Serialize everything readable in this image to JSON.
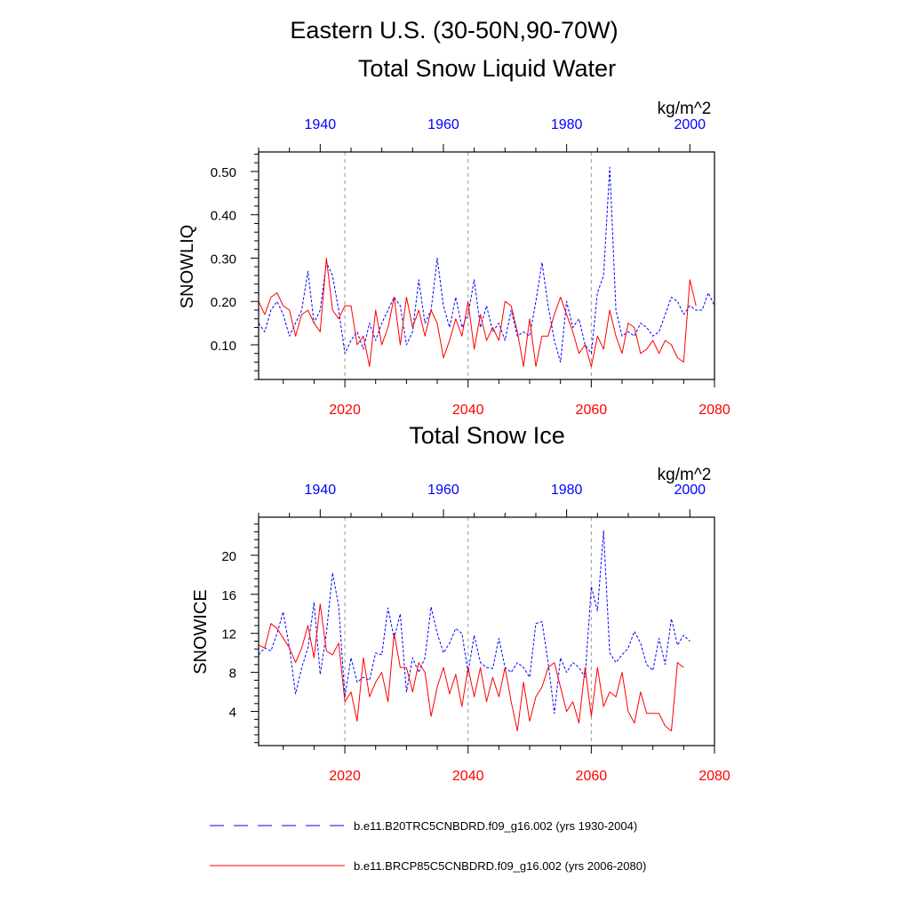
{
  "figure": {
    "title_line1": "Eastern U.S. (30-50N,90-70W)",
    "legend": [
      {
        "label": "b.e11.B20TRC5CNBDRD.f09_g16.002 (yrs 1930-2004)",
        "color": "#0000ff",
        "style": "dashed"
      },
      {
        "label": "b.e11.BRCP85C5CNBDRD.f09_g16.002 (yrs 2006-2080)",
        "color": "#ff0000",
        "style": "solid"
      }
    ]
  },
  "colors": {
    "historical": "#0000ff",
    "future": "#ff0000",
    "axis": "#000000",
    "grid": "#999999"
  },
  "chart_data": [
    {
      "type": "line",
      "title": "Total Snow Liquid Water",
      "units": "kg/m^2",
      "ylabel": "SNOWLIQ",
      "ylim": [
        0.02,
        0.545
      ],
      "yticks": [
        0.1,
        0.2,
        0.3,
        0.4,
        0.5
      ],
      "ytick_labels": [
        "0.10",
        "0.20",
        "0.30",
        "0.40",
        "0.50"
      ],
      "x_bottom": {
        "range": [
          2006,
          2080
        ],
        "ticks": [
          2020,
          2040,
          2060,
          2080
        ],
        "color": "#ff0000"
      },
      "x_top": {
        "range": [
          1930,
          2004
        ],
        "ticks": [
          1940,
          1960,
          1980,
          2000
        ],
        "color": "#0000ff"
      },
      "gridlines_at_bottom_years": [
        2020,
        2040,
        2060
      ],
      "series": [
        {
          "name": "b.e11.B20TRC5CNBDRD.f09_g16.002 (yrs 1930-2004)",
          "axis": "top",
          "start_year": 1930,
          "style": "dashed",
          "color": "#0000ff",
          "values": [
            0.15,
            0.13,
            0.18,
            0.2,
            0.17,
            0.12,
            0.15,
            0.18,
            0.27,
            0.15,
            0.18,
            0.29,
            0.26,
            0.18,
            0.08,
            0.11,
            0.13,
            0.09,
            0.15,
            0.11,
            0.15,
            0.18,
            0.21,
            0.19,
            0.1,
            0.13,
            0.25,
            0.15,
            0.18,
            0.3,
            0.19,
            0.14,
            0.21,
            0.14,
            0.17,
            0.25,
            0.14,
            0.19,
            0.13,
            0.15,
            0.11,
            0.18,
            0.12,
            0.13,
            0.12,
            0.2,
            0.29,
            0.19,
            0.11,
            0.06,
            0.2,
            0.14,
            0.16,
            0.1,
            0.08,
            0.22,
            0.26,
            0.51,
            0.18,
            0.12,
            0.13,
            0.12,
            0.15,
            0.14,
            0.12,
            0.13,
            0.17,
            0.21,
            0.2,
            0.17,
            0.19,
            0.18,
            0.18,
            0.22,
            0.19
          ]
        },
        {
          "name": "b.e11.BRCP85C5CNBDRD.f09_g16.002 (yrs 2006-2080)",
          "axis": "bottom",
          "start_year": 2006,
          "style": "solid",
          "color": "#ff0000",
          "values": [
            0.2,
            0.17,
            0.21,
            0.22,
            0.19,
            0.18,
            0.12,
            0.17,
            0.18,
            0.15,
            0.13,
            0.3,
            0.18,
            0.16,
            0.19,
            0.19,
            0.1,
            0.12,
            0.05,
            0.18,
            0.1,
            0.14,
            0.21,
            0.1,
            0.21,
            0.14,
            0.18,
            0.12,
            0.18,
            0.15,
            0.07,
            0.11,
            0.16,
            0.12,
            0.2,
            0.09,
            0.17,
            0.11,
            0.14,
            0.11,
            0.2,
            0.19,
            0.13,
            0.05,
            0.16,
            0.05,
            0.12,
            0.12,
            0.17,
            0.21,
            0.17,
            0.13,
            0.08,
            0.1,
            0.05,
            0.12,
            0.09,
            0.18,
            0.12,
            0.08,
            0.15,
            0.14,
            0.08,
            0.09,
            0.11,
            0.08,
            0.11,
            0.1,
            0.07,
            0.06,
            0.25,
            0.19
          ]
        }
      ]
    },
    {
      "type": "line",
      "title": "Total Snow Ice",
      "units": "kg/m^2",
      "ylabel": "SNOWICE",
      "ylim": [
        0.5,
        23.9
      ],
      "yticks": [
        4,
        8,
        12,
        16,
        20
      ],
      "ytick_labels": [
        "4",
        "8",
        "12",
        "16",
        "20"
      ],
      "x_bottom": {
        "range": [
          2006,
          2080
        ],
        "ticks": [
          2020,
          2040,
          2060,
          2080
        ],
        "color": "#ff0000"
      },
      "x_top": {
        "range": [
          1930,
          2004
        ],
        "ticks": [
          1940,
          1960,
          1980,
          2000
        ],
        "color": "#0000ff"
      },
      "gridlines_at_bottom_years": [
        2020,
        2040,
        2060
      ],
      "series": [
        {
          "name": "b.e11.B20TRC5CNBDRD.f09_g16.002 (yrs 1930-2004)",
          "axis": "top",
          "start_year": 1930,
          "style": "dashed",
          "color": "#0000ff",
          "values": [
            9.8,
            10.5,
            10.2,
            12.0,
            14.2,
            10.5,
            5.8,
            8.5,
            10.5,
            15.2,
            7.8,
            12.0,
            18.2,
            14.8,
            5.5,
            9.5,
            7.0,
            7.5,
            7.2,
            10.0,
            9.8,
            14.6,
            11.5,
            14.0,
            6.0,
            9.5,
            8.0,
            9.5,
            14.7,
            12.0,
            10.0,
            11.0,
            12.5,
            12.0,
            8.0,
            11.8,
            9.0,
            8.5,
            8.4,
            11.5,
            8.5,
            8.0,
            9.0,
            8.5,
            7.5,
            13.0,
            13.2,
            9.0,
            3.8,
            9.5,
            8.0,
            9.0,
            8.5,
            7.5,
            16.8,
            14.3,
            22.5,
            10.0,
            9.0,
            9.8,
            10.5,
            12.2,
            11.0,
            8.8,
            8.2,
            11.5,
            8.8,
            13.5,
            10.8,
            11.8,
            11.2
          ]
        },
        {
          "name": "b.e11.BRCP85C5CNBDRD.f09_g16.002 (yrs 2006-2080)",
          "axis": "bottom",
          "start_year": 2006,
          "style": "solid",
          "color": "#ff0000",
          "values": [
            10.8,
            10.5,
            13.0,
            12.5,
            11.5,
            10.5,
            9.0,
            10.5,
            12.8,
            9.5,
            15.0,
            10.2,
            9.8,
            11.0,
            5.0,
            6.0,
            3.0,
            9.5,
            5.5,
            7.0,
            8.0,
            5.0,
            12.0,
            8.5,
            8.5,
            6.0,
            9.0,
            8.0,
            3.5,
            6.5,
            8.5,
            5.8,
            7.8,
            4.5,
            8.5,
            5.5,
            8.5,
            5.0,
            7.5,
            5.5,
            8.5,
            5.0,
            2.0,
            7.0,
            3.0,
            5.5,
            6.5,
            8.5,
            9.0,
            6.5,
            4.0,
            5.0,
            2.8,
            8.5,
            3.5,
            8.5,
            4.5,
            6.0,
            5.5,
            8.0,
            4.0,
            2.8,
            6.0,
            3.8,
            3.8,
            3.8,
            2.5,
            2.0,
            9.0,
            8.5
          ]
        }
      ]
    }
  ]
}
